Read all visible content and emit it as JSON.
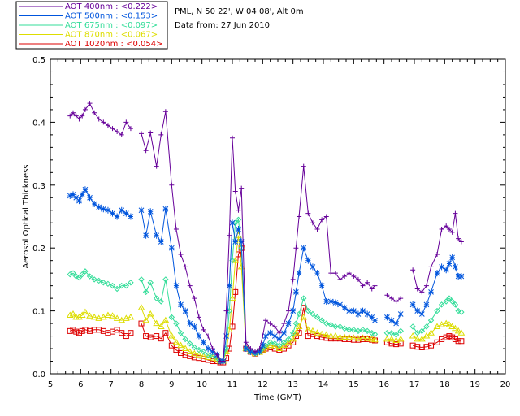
{
  "header": {
    "site_line": "PML, N 50 22', W 04 08', Alt 0m",
    "date_line": "Data from: 27 Jun 2010"
  },
  "chart_data": {
    "type": "line",
    "xlabel": "Time (GMT)",
    "ylabel": "Aerosol Optical Thickness",
    "xlim": [
      5,
      20
    ],
    "ylim": [
      0,
      0.5
    ],
    "xticks": [
      "5",
      "6",
      "7",
      "8",
      "9",
      "10",
      "11",
      "12",
      "13",
      "14",
      "15",
      "16",
      "17",
      "18",
      "19",
      "20"
    ],
    "yticks": [
      "0.0",
      "0.1",
      "0.2",
      "0.3",
      "0.4",
      "0.5"
    ],
    "legend_position": "top-left",
    "series": [
      {
        "name": "400nm",
        "legend_label": "AOT  400nm : <0.222>",
        "color": "#660099",
        "marker": "plus",
        "x": [
          5.65,
          5.75,
          5.85,
          5.95,
          6.05,
          6.15,
          6.3,
          6.45,
          6.6,
          6.75,
          6.9,
          7.05,
          7.2,
          7.35,
          7.5,
          7.65,
          8.0,
          8.15,
          8.3,
          8.5,
          8.65,
          8.8,
          9.0,
          9.15,
          9.3,
          9.45,
          9.6,
          9.75,
          9.9,
          10.05,
          10.2,
          10.35,
          10.5,
          10.6,
          10.7,
          10.8,
          10.9,
          11.0,
          11.1,
          11.2,
          11.3,
          11.45,
          11.6,
          11.75,
          11.9,
          12.0,
          12.1,
          12.25,
          12.4,
          12.55,
          12.7,
          12.85,
          13.0,
          13.1,
          13.2,
          13.35,
          13.5,
          13.65,
          13.8,
          13.95,
          14.1,
          14.25,
          14.4,
          14.55,
          14.7,
          14.85,
          15.0,
          15.15,
          15.3,
          15.45,
          15.6,
          15.7,
          16.1,
          16.25,
          16.4,
          16.55,
          16.95,
          17.1,
          17.25,
          17.4,
          17.55,
          17.75,
          17.9,
          18.05,
          18.15,
          18.25,
          18.35,
          18.45,
          18.55
        ],
        "y": [
          0.41,
          0.415,
          0.41,
          0.405,
          0.41,
          0.42,
          0.43,
          0.415,
          0.405,
          0.4,
          0.395,
          0.39,
          0.385,
          0.38,
          0.4,
          0.39,
          0.382,
          0.355,
          0.383,
          0.33,
          0.38,
          0.417,
          0.3,
          0.23,
          0.19,
          0.17,
          0.14,
          0.12,
          0.09,
          0.07,
          0.06,
          0.04,
          0.03,
          0.02,
          0.02,
          0.1,
          0.22,
          0.375,
          0.29,
          0.26,
          0.295,
          0.05,
          0.04,
          0.035,
          0.04,
          0.06,
          0.085,
          0.08,
          0.075,
          0.065,
          0.08,
          0.1,
          0.15,
          0.2,
          0.25,
          0.33,
          0.255,
          0.24,
          0.23,
          0.245,
          0.25,
          0.16,
          0.16,
          0.15,
          0.155,
          0.16,
          0.155,
          0.15,
          0.14,
          0.145,
          0.135,
          0.14,
          0.125,
          0.12,
          0.115,
          0.12,
          0.165,
          0.135,
          0.13,
          0.14,
          0.17,
          0.19,
          0.23,
          0.235,
          0.23,
          0.225,
          0.255,
          0.215,
          0.21
        ]
      },
      {
        "name": "500nm",
        "legend_label": "AOT  500nm : <0.153>",
        "color": "#0055dd",
        "marker": "star",
        "x": [
          5.65,
          5.75,
          5.85,
          5.95,
          6.05,
          6.15,
          6.3,
          6.45,
          6.6,
          6.75,
          6.9,
          7.05,
          7.2,
          7.35,
          7.5,
          7.65,
          8.0,
          8.15,
          8.3,
          8.5,
          8.65,
          8.8,
          9.0,
          9.15,
          9.3,
          9.45,
          9.6,
          9.75,
          9.9,
          10.05,
          10.2,
          10.35,
          10.5,
          10.6,
          10.7,
          10.8,
          10.9,
          11.0,
          11.1,
          11.2,
          11.3,
          11.45,
          11.6,
          11.75,
          11.9,
          12.0,
          12.1,
          12.25,
          12.4,
          12.55,
          12.7,
          12.85,
          13.0,
          13.1,
          13.2,
          13.35,
          13.5,
          13.65,
          13.8,
          13.95,
          14.1,
          14.25,
          14.4,
          14.55,
          14.7,
          14.85,
          15.0,
          15.15,
          15.3,
          15.45,
          15.6,
          15.7,
          16.1,
          16.25,
          16.4,
          16.55,
          16.95,
          17.1,
          17.25,
          17.4,
          17.55,
          17.75,
          17.9,
          18.05,
          18.15,
          18.25,
          18.35,
          18.45,
          18.55
        ],
        "y": [
          0.283,
          0.285,
          0.28,
          0.275,
          0.285,
          0.293,
          0.28,
          0.27,
          0.265,
          0.262,
          0.26,
          0.255,
          0.25,
          0.26,
          0.255,
          0.25,
          0.26,
          0.22,
          0.258,
          0.22,
          0.21,
          0.262,
          0.2,
          0.14,
          0.11,
          0.1,
          0.08,
          0.075,
          0.06,
          0.05,
          0.04,
          0.035,
          0.03,
          0.02,
          0.02,
          0.06,
          0.14,
          0.24,
          0.21,
          0.23,
          0.21,
          0.04,
          0.035,
          0.033,
          0.035,
          0.045,
          0.06,
          0.065,
          0.06,
          0.055,
          0.065,
          0.08,
          0.1,
          0.13,
          0.16,
          0.2,
          0.18,
          0.17,
          0.16,
          0.14,
          0.115,
          0.115,
          0.113,
          0.11,
          0.105,
          0.1,
          0.1,
          0.095,
          0.1,
          0.095,
          0.09,
          0.085,
          0.09,
          0.085,
          0.08,
          0.095,
          0.11,
          0.1,
          0.095,
          0.11,
          0.13,
          0.16,
          0.17,
          0.165,
          0.175,
          0.185,
          0.17,
          0.155,
          0.155
        ]
      },
      {
        "name": "675nm",
        "legend_label": "AOT  675nm : <0.097>",
        "color": "#33dd99",
        "marker": "diamond",
        "x": [
          5.65,
          5.75,
          5.85,
          5.95,
          6.05,
          6.15,
          6.3,
          6.45,
          6.6,
          6.75,
          6.9,
          7.05,
          7.2,
          7.35,
          7.5,
          7.65,
          8.0,
          8.15,
          8.3,
          8.5,
          8.65,
          8.8,
          9.0,
          9.15,
          9.3,
          9.45,
          9.6,
          9.75,
          9.9,
          10.05,
          10.2,
          10.35,
          10.5,
          10.6,
          10.7,
          10.8,
          10.9,
          11.0,
          11.1,
          11.2,
          11.3,
          11.45,
          11.6,
          11.75,
          11.9,
          12.0,
          12.1,
          12.25,
          12.4,
          12.55,
          12.7,
          12.85,
          13.0,
          13.1,
          13.2,
          13.35,
          13.5,
          13.65,
          13.8,
          13.95,
          14.1,
          14.25,
          14.4,
          14.55,
          14.7,
          14.85,
          15.0,
          15.15,
          15.3,
          15.45,
          15.6,
          15.7,
          16.1,
          16.25,
          16.4,
          16.55,
          16.95,
          17.1,
          17.25,
          17.4,
          17.55,
          17.75,
          17.9,
          18.05,
          18.15,
          18.25,
          18.35,
          18.45,
          18.55
        ],
        "y": [
          0.158,
          0.16,
          0.155,
          0.153,
          0.158,
          0.163,
          0.155,
          0.15,
          0.148,
          0.145,
          0.143,
          0.14,
          0.135,
          0.14,
          0.14,
          0.145,
          0.15,
          0.13,
          0.145,
          0.12,
          0.115,
          0.15,
          0.09,
          0.08,
          0.065,
          0.055,
          0.048,
          0.042,
          0.038,
          0.035,
          0.03,
          0.028,
          0.025,
          0.02,
          0.02,
          0.04,
          0.1,
          0.18,
          0.24,
          0.245,
          0.2,
          0.04,
          0.035,
          0.033,
          0.035,
          0.04,
          0.045,
          0.05,
          0.048,
          0.045,
          0.05,
          0.055,
          0.065,
          0.08,
          0.095,
          0.12,
          0.1,
          0.095,
          0.09,
          0.085,
          0.08,
          0.078,
          0.075,
          0.075,
          0.072,
          0.07,
          0.07,
          0.068,
          0.07,
          0.068,
          0.065,
          0.063,
          0.065,
          0.065,
          0.062,
          0.068,
          0.075,
          0.065,
          0.068,
          0.075,
          0.085,
          0.1,
          0.11,
          0.115,
          0.12,
          0.115,
          0.11,
          0.1,
          0.098
        ]
      },
      {
        "name": "870nm",
        "legend_label": "AOT  870nm : <0.067>",
        "color": "#dddd00",
        "marker": "triangle",
        "x": [
          5.65,
          5.75,
          5.85,
          5.95,
          6.05,
          6.15,
          6.3,
          6.45,
          6.6,
          6.75,
          6.9,
          7.05,
          7.2,
          7.35,
          7.5,
          7.65,
          8.0,
          8.15,
          8.3,
          8.5,
          8.65,
          8.8,
          9.0,
          9.15,
          9.3,
          9.45,
          9.6,
          9.75,
          9.9,
          10.05,
          10.2,
          10.35,
          10.5,
          10.6,
          10.7,
          10.8,
          10.9,
          11.0,
          11.1,
          11.2,
          11.3,
          11.45,
          11.6,
          11.75,
          11.9,
          12.0,
          12.1,
          12.25,
          12.4,
          12.55,
          12.7,
          12.85,
          13.0,
          13.1,
          13.2,
          13.35,
          13.5,
          13.65,
          13.8,
          13.95,
          14.1,
          14.25,
          14.4,
          14.55,
          14.7,
          14.85,
          15.0,
          15.15,
          15.3,
          15.45,
          15.6,
          15.7,
          16.1,
          16.25,
          16.4,
          16.55,
          16.95,
          17.1,
          17.25,
          17.4,
          17.55,
          17.75,
          17.9,
          18.05,
          18.15,
          18.25,
          18.35,
          18.45,
          18.55
        ],
        "y": [
          0.093,
          0.095,
          0.09,
          0.09,
          0.093,
          0.098,
          0.092,
          0.09,
          0.088,
          0.09,
          0.093,
          0.092,
          0.088,
          0.085,
          0.088,
          0.09,
          0.105,
          0.085,
          0.095,
          0.08,
          0.075,
          0.085,
          0.06,
          0.05,
          0.045,
          0.04,
          0.035,
          0.032,
          0.03,
          0.028,
          0.026,
          0.025,
          0.023,
          0.02,
          0.02,
          0.035,
          0.07,
          0.12,
          0.18,
          0.22,
          0.17,
          0.04,
          0.035,
          0.032,
          0.034,
          0.038,
          0.042,
          0.045,
          0.043,
          0.04,
          0.045,
          0.05,
          0.055,
          0.065,
          0.075,
          0.09,
          0.07,
          0.068,
          0.065,
          0.063,
          0.062,
          0.06,
          0.06,
          0.058,
          0.058,
          0.058,
          0.057,
          0.056,
          0.057,
          0.056,
          0.055,
          0.054,
          0.055,
          0.055,
          0.053,
          0.055,
          0.06,
          0.055,
          0.055,
          0.06,
          0.065,
          0.075,
          0.078,
          0.08,
          0.078,
          0.075,
          0.072,
          0.068,
          0.065
        ]
      },
      {
        "name": "1020nm",
        "legend_label": "AOT 1020nm : <0.054>",
        "color": "#dd0000",
        "marker": "square",
        "x": [
          5.65,
          5.75,
          5.85,
          5.95,
          6.05,
          6.15,
          6.3,
          6.45,
          6.6,
          6.75,
          6.9,
          7.05,
          7.2,
          7.35,
          7.5,
          7.65,
          8.0,
          8.15,
          8.3,
          8.5,
          8.65,
          8.8,
          9.0,
          9.15,
          9.3,
          9.45,
          9.6,
          9.75,
          9.9,
          10.05,
          10.2,
          10.35,
          10.5,
          10.6,
          10.7,
          10.8,
          10.9,
          11.0,
          11.1,
          11.2,
          11.3,
          11.45,
          11.6,
          11.75,
          11.9,
          12.0,
          12.1,
          12.25,
          12.4,
          12.55,
          12.7,
          12.85,
          13.0,
          13.1,
          13.2,
          13.35,
          13.5,
          13.65,
          13.8,
          13.95,
          14.1,
          14.25,
          14.4,
          14.55,
          14.7,
          14.85,
          15.0,
          15.15,
          15.3,
          15.45,
          15.6,
          15.7,
          16.1,
          16.25,
          16.4,
          16.55,
          16.95,
          17.1,
          17.25,
          17.4,
          17.55,
          17.75,
          17.9,
          18.05,
          18.15,
          18.25,
          18.35,
          18.45,
          18.55
        ],
        "y": [
          0.068,
          0.07,
          0.067,
          0.065,
          0.068,
          0.07,
          0.068,
          0.07,
          0.07,
          0.068,
          0.065,
          0.067,
          0.07,
          0.065,
          0.06,
          0.065,
          0.08,
          0.06,
          0.058,
          0.06,
          0.056,
          0.065,
          0.045,
          0.038,
          0.033,
          0.03,
          0.028,
          0.026,
          0.025,
          0.024,
          0.022,
          0.02,
          0.02,
          0.018,
          0.018,
          0.025,
          0.04,
          0.075,
          0.13,
          0.19,
          0.2,
          0.04,
          0.035,
          0.032,
          0.035,
          0.038,
          0.04,
          0.042,
          0.04,
          0.038,
          0.04,
          0.045,
          0.05,
          0.06,
          0.065,
          0.105,
          0.06,
          0.063,
          0.06,
          0.058,
          0.057,
          0.056,
          0.056,
          0.056,
          0.055,
          0.055,
          0.054,
          0.054,
          0.055,
          0.055,
          0.054,
          0.053,
          0.05,
          0.048,
          0.047,
          0.048,
          0.045,
          0.043,
          0.042,
          0.043,
          0.045,
          0.05,
          0.055,
          0.058,
          0.06,
          0.058,
          0.055,
          0.052,
          0.052
        ]
      }
    ]
  }
}
